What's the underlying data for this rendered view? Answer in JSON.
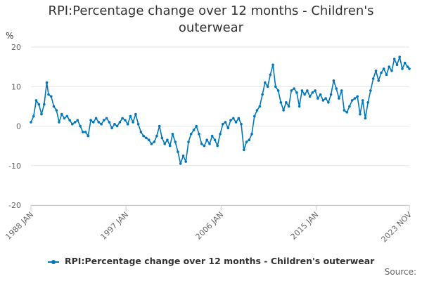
{
  "chart_data": {
    "type": "line",
    "title": "RPI:Percentage change over 12 months - Children's outerwear",
    "ylabel": "%",
    "xlabel": "",
    "ylim": [
      -20,
      20
    ],
    "yticks": [
      20,
      10,
      0,
      -10,
      -20
    ],
    "xticks": [
      "1988 JAN",
      "1997 JAN",
      "2006 JAN",
      "2015 JAN",
      "2023 NOV"
    ],
    "grid": true,
    "legend_position": "bottom",
    "series": [
      {
        "name": "RPI:Percentage change over 12 months - Children's outerwear",
        "color": "#0077bb",
        "points": [
          [
            "1988-01",
            1.0
          ],
          [
            "1988-04",
            2.5
          ],
          [
            "1988-07",
            6.5
          ],
          [
            "1988-10",
            5.5
          ],
          [
            "1989-01",
            3.0
          ],
          [
            "1989-04",
            5.5
          ],
          [
            "1989-07",
            11.0
          ],
          [
            "1989-09",
            8.0
          ],
          [
            "1989-12",
            7.5
          ],
          [
            "1990-03",
            5.0
          ],
          [
            "1990-06",
            4.0
          ],
          [
            "1990-09",
            1.0
          ],
          [
            "1990-12",
            3.0
          ],
          [
            "1991-03",
            2.0
          ],
          [
            "1991-06",
            2.5
          ],
          [
            "1991-09",
            1.5
          ],
          [
            "1991-12",
            0.5
          ],
          [
            "1992-03",
            1.0
          ],
          [
            "1992-06",
            1.5
          ],
          [
            "1992-09",
            0.0
          ],
          [
            "1992-12",
            -1.5
          ],
          [
            "1993-03",
            -1.5
          ],
          [
            "1993-06",
            -2.5
          ],
          [
            "1993-09",
            1.5
          ],
          [
            "1993-12",
            1.0
          ],
          [
            "1994-03",
            2.0
          ],
          [
            "1994-06",
            1.0
          ],
          [
            "1994-09",
            0.5
          ],
          [
            "1994-12",
            1.5
          ],
          [
            "1995-03",
            2.0
          ],
          [
            "1995-06",
            1.0
          ],
          [
            "1995-09",
            -0.5
          ],
          [
            "1995-12",
            0.5
          ],
          [
            "1996-03",
            0.0
          ],
          [
            "1996-06",
            1.0
          ],
          [
            "1996-09",
            2.0
          ],
          [
            "1996-12",
            1.5
          ],
          [
            "1997-03",
            0.5
          ],
          [
            "1997-06",
            2.5
          ],
          [
            "1997-09",
            1.0
          ],
          [
            "1997-12",
            3.0
          ],
          [
            "1998-03",
            0.5
          ],
          [
            "1998-06",
            -1.5
          ],
          [
            "1998-09",
            -2.5
          ],
          [
            "1998-12",
            -3.0
          ],
          [
            "1999-03",
            -3.5
          ],
          [
            "1999-06",
            -4.5
          ],
          [
            "1999-09",
            -4.0
          ],
          [
            "1999-12",
            -2.5
          ],
          [
            "2000-03",
            0.0
          ],
          [
            "2000-06",
            -3.0
          ],
          [
            "2000-09",
            -4.5
          ],
          [
            "2000-12",
            -3.5
          ],
          [
            "2001-03",
            -5.0
          ],
          [
            "2001-06",
            -2.0
          ],
          [
            "2001-09",
            -4.0
          ],
          [
            "2001-12",
            -6.5
          ],
          [
            "2002-03",
            -9.5
          ],
          [
            "2002-06",
            -7.5
          ],
          [
            "2002-09",
            -9.0
          ],
          [
            "2002-12",
            -4.0
          ],
          [
            "2003-03",
            -2.0
          ],
          [
            "2003-06",
            -1.0
          ],
          [
            "2003-09",
            0.0
          ],
          [
            "2003-12",
            -2.0
          ],
          [
            "2004-03",
            -4.5
          ],
          [
            "2004-06",
            -5.0
          ],
          [
            "2004-09",
            -3.5
          ],
          [
            "2004-12",
            -4.5
          ],
          [
            "2005-03",
            -2.5
          ],
          [
            "2005-06",
            -3.5
          ],
          [
            "2005-09",
            -5.0
          ],
          [
            "2005-12",
            -2.0
          ],
          [
            "2006-03",
            0.5
          ],
          [
            "2006-06",
            1.0
          ],
          [
            "2006-09",
            -0.5
          ],
          [
            "2006-12",
            1.5
          ],
          [
            "2007-03",
            2.0
          ],
          [
            "2007-06",
            1.0
          ],
          [
            "2007-09",
            2.0
          ],
          [
            "2007-12",
            0.5
          ],
          [
            "2008-03",
            -6.0
          ],
          [
            "2008-06",
            -4.0
          ],
          [
            "2008-09",
            -3.5
          ],
          [
            "2008-12",
            -2.0
          ],
          [
            "2009-03",
            2.5
          ],
          [
            "2009-06",
            4.0
          ],
          [
            "2009-09",
            5.0
          ],
          [
            "2009-12",
            8.0
          ],
          [
            "2010-03",
            11.0
          ],
          [
            "2010-06",
            10.0
          ],
          [
            "2010-09",
            13.0
          ],
          [
            "2010-12",
            15.5
          ],
          [
            "2011-03",
            10.0
          ],
          [
            "2011-06",
            9.0
          ],
          [
            "2011-09",
            6.0
          ],
          [
            "2011-12",
            4.0
          ],
          [
            "2012-03",
            6.0
          ],
          [
            "2012-06",
            5.0
          ],
          [
            "2012-09",
            9.0
          ],
          [
            "2012-12",
            9.5
          ],
          [
            "2013-03",
            8.5
          ],
          [
            "2013-06",
            5.0
          ],
          [
            "2013-09",
            9.0
          ],
          [
            "2013-12",
            8.0
          ],
          [
            "2014-03",
            9.0
          ],
          [
            "2014-06",
            7.5
          ],
          [
            "2014-09",
            8.5
          ],
          [
            "2014-12",
            9.0
          ],
          [
            "2015-03",
            7.0
          ],
          [
            "2015-06",
            8.0
          ],
          [
            "2015-09",
            6.5
          ],
          [
            "2015-12",
            7.0
          ],
          [
            "2016-03",
            6.0
          ],
          [
            "2016-06",
            8.0
          ],
          [
            "2016-09",
            11.5
          ],
          [
            "2016-12",
            9.5
          ],
          [
            "2017-03",
            7.0
          ],
          [
            "2017-06",
            9.0
          ],
          [
            "2017-09",
            4.0
          ],
          [
            "2017-12",
            3.5
          ],
          [
            "2018-03",
            5.0
          ],
          [
            "2018-06",
            6.5
          ],
          [
            "2018-09",
            7.0
          ],
          [
            "2018-12",
            7.5
          ],
          [
            "2019-03",
            3.0
          ],
          [
            "2019-06",
            6.5
          ],
          [
            "2019-09",
            2.0
          ],
          [
            "2019-12",
            6.0
          ],
          [
            "2020-03",
            9.0
          ],
          [
            "2020-06",
            12.0
          ],
          [
            "2020-09",
            14.0
          ],
          [
            "2020-12",
            11.5
          ],
          [
            "2021-03",
            13.5
          ],
          [
            "2021-06",
            14.5
          ],
          [
            "2021-09",
            13.0
          ],
          [
            "2021-12",
            15.0
          ],
          [
            "2022-03",
            14.0
          ],
          [
            "2022-06",
            17.0
          ],
          [
            "2022-09",
            15.5
          ],
          [
            "2022-12",
            17.5
          ],
          [
            "2023-03",
            14.5
          ],
          [
            "2023-06",
            16.0
          ],
          [
            "2023-09",
            15.0
          ],
          [
            "2023-11",
            14.5
          ]
        ]
      }
    ]
  },
  "legend": {
    "label": "RPI:Percentage change over 12 months - Children's outerwear"
  },
  "source": {
    "label": "Source:"
  }
}
